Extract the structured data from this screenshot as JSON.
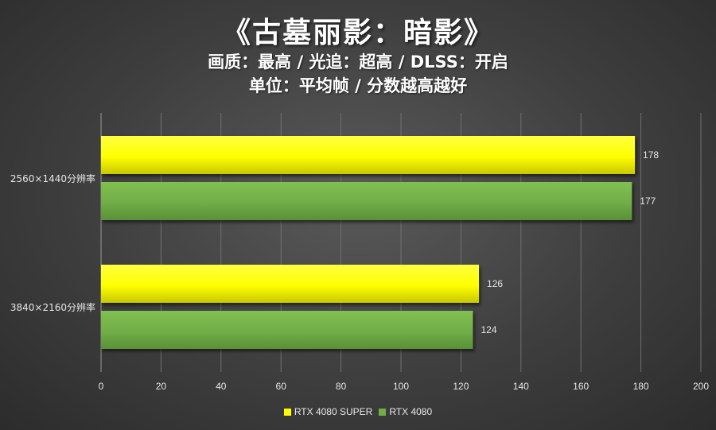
{
  "title": "《古墓丽影：暗影》",
  "subtitle1": "画质：最高 / 光追：超高 / DLSS：开启",
  "subtitle2": "单位：平均帧 / 分数越高越好",
  "colors": {
    "RTX 4080 SUPER": "#ffff00",
    "RTX 4080": "#70ad47"
  },
  "chart_data": {
    "type": "bar",
    "orientation": "horizontal",
    "categories": [
      "2560×1440分辨率",
      "3840×2160分辨率"
    ],
    "series": [
      {
        "name": "RTX 4080 SUPER",
        "values": [
          178,
          126
        ]
      },
      {
        "name": "RTX 4080",
        "values": [
          177,
          124
        ]
      }
    ],
    "xlim": [
      0,
      200
    ],
    "xticks": [
      0,
      20,
      40,
      60,
      80,
      100,
      120,
      140,
      160,
      180,
      200
    ],
    "grid": true,
    "legend": "bottom"
  }
}
